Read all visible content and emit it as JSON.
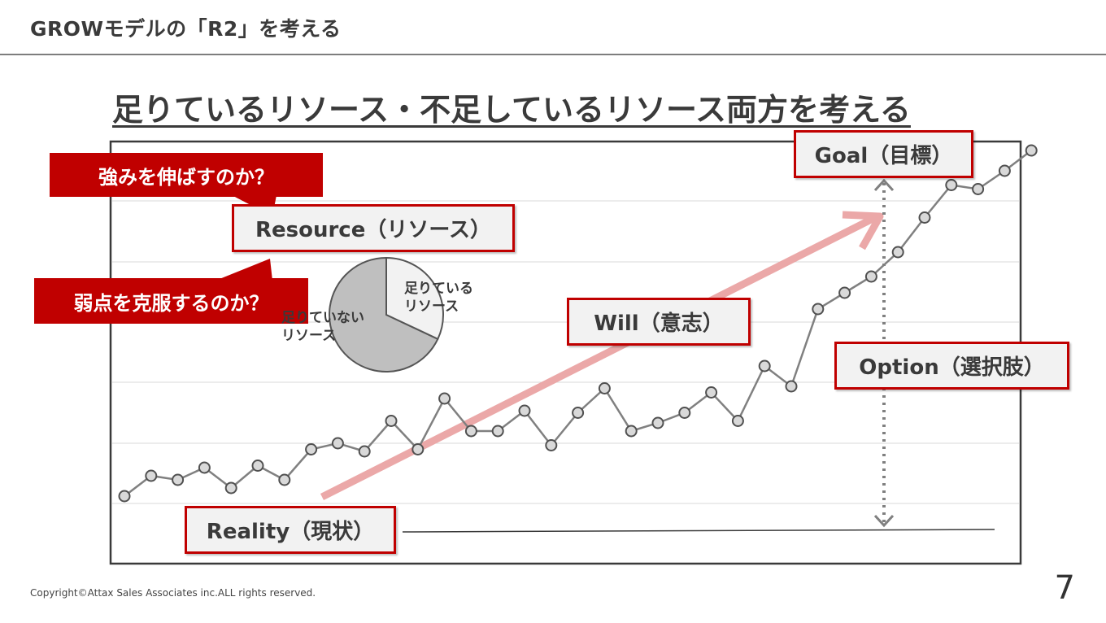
{
  "header": {
    "title": "GROWモデルの「R2」を考える"
  },
  "main_title": "足りているリソース・不足しているリソース両方を考える",
  "labels": {
    "goal": "Goal（目標）",
    "resource": "Resource（リソース）",
    "will": "Will（意志）",
    "option": "Option（選択肢）",
    "reality": "Reality（現状）"
  },
  "callouts": {
    "strength": "強みを伸ばすのか？",
    "weakness": "弱点を克服するのか？"
  },
  "pie": {
    "sufficient_label_line1": "足りている",
    "sufficient_label_line2": "リソース",
    "insufficient_label_line1": "足りていない",
    "insufficient_label_line2": "リソース",
    "sufficient_share": 0.32,
    "insufficient_share": 0.68
  },
  "trend_series": [
    18,
    28,
    26,
    32,
    22,
    33,
    26,
    41,
    44,
    40,
    55,
    41,
    66,
    50,
    50,
    60,
    43,
    59,
    71,
    50,
    54,
    59,
    69,
    55,
    82,
    72,
    110,
    118,
    126,
    138,
    155,
    171,
    169,
    178,
    188
  ],
  "colors": {
    "accent": "#c00000",
    "arrow": "#e8a3a3",
    "line": "#808080",
    "marker_fill": "#d9d9d9"
  },
  "footer": {
    "copyright": "Copyright©Attax Sales Associates inc.ALL rights reserved.",
    "page_number": "7"
  }
}
